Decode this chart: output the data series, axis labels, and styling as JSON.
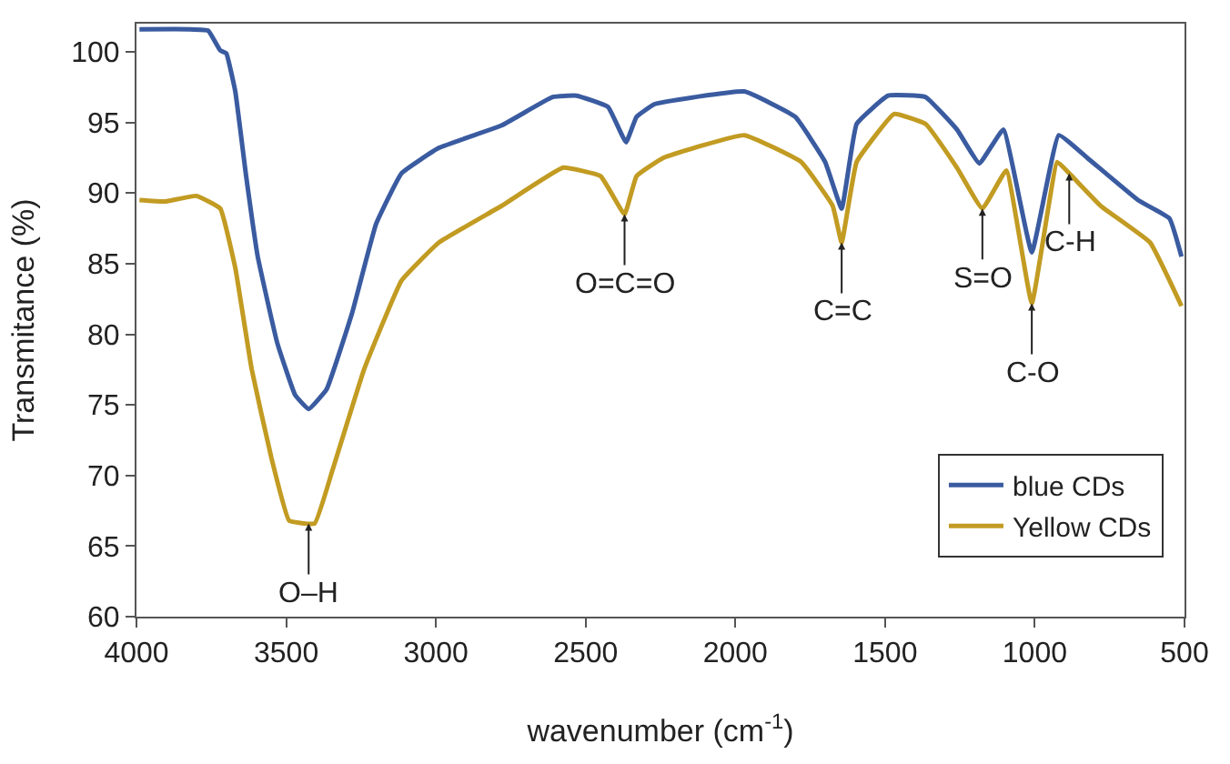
{
  "chart_data": {
    "type": "line",
    "xlabel": "wavenumber (cm$^{-1}$)",
    "ylabel": "Transmitance (%)",
    "xlim": [
      4000,
      500
    ],
    "xticks": [
      4000,
      3500,
      3000,
      2500,
      2000,
      1500,
      1000,
      500
    ],
    "ylim": [
      60,
      102
    ],
    "yticks": [
      60,
      65,
      70,
      75,
      80,
      85,
      90,
      95,
      100
    ],
    "grid": false,
    "legend": "bottom right",
    "marker": "none",
    "line_style": "solid",
    "series": [
      {
        "name": "blue CDs",
        "color": "#3a5ba0",
        "x": [
          3990,
          3825,
          3760,
          3720,
          3700,
          3670,
          3635,
          3595,
          3530,
          3470,
          3425,
          3365,
          3280,
          3200,
          3115,
          2990,
          2780,
          2610,
          2530,
          2425,
          2365,
          2330,
          2270,
          1970,
          1800,
          1700,
          1645,
          1595,
          1490,
          1365,
          1260,
          1185,
          1105,
          1010,
          920,
          825,
          655,
          550,
          510
        ],
        "values": [
          101.6,
          101.6,
          101.5,
          100.1,
          99.9,
          97.2,
          91.4,
          85.5,
          79.4,
          75.7,
          74.7,
          76.1,
          81.5,
          87.8,
          91.4,
          93.2,
          94.8,
          96.8,
          96.9,
          96.1,
          93.6,
          95.4,
          96.3,
          97.2,
          95.4,
          92.2,
          88.9,
          94.9,
          96.9,
          96.8,
          94.5,
          92.1,
          94.5,
          85.8,
          94.1,
          92.5,
          89.5,
          88.2,
          85.5
        ]
      },
      {
        "name": "Yellow CDs",
        "color": "#c29b22",
        "x": [
          3990,
          3905,
          3800,
          3720,
          3670,
          3615,
          3550,
          3490,
          3405,
          3345,
          3240,
          3115,
          2990,
          2780,
          2575,
          2450,
          2370,
          2330,
          2240,
          1970,
          1780,
          1675,
          1645,
          1595,
          1470,
          1365,
          1260,
          1175,
          1095,
          1010,
          925,
          885,
          780,
          615,
          510
        ],
        "values": [
          89.5,
          89.4,
          89.8,
          88.9,
          84.7,
          77.5,
          71.3,
          66.8,
          66.6,
          70.4,
          77.5,
          83.8,
          86.5,
          89.1,
          91.8,
          91.2,
          88.5,
          91.2,
          92.5,
          94.1,
          92.2,
          89.1,
          86.5,
          92.2,
          95.6,
          94.9,
          91.8,
          88.9,
          91.6,
          82.2,
          92.2,
          91.4,
          89.1,
          86.5,
          82.0
        ]
      }
    ],
    "annotations": [
      {
        "text": "O–H",
        "x": 3425,
        "y": 66.6
      },
      {
        "text": "O=C=O",
        "x": 2370,
        "y": 88.5
      },
      {
        "text": "C=C",
        "x": 1645,
        "y": 86.5
      },
      {
        "text": "S=O",
        "x": 1175,
        "y": 88.9
      },
      {
        "text": "C-O",
        "x": 1010,
        "y": 82.2
      },
      {
        "text": "C-H",
        "x": 885,
        "y": 91.4
      }
    ]
  }
}
